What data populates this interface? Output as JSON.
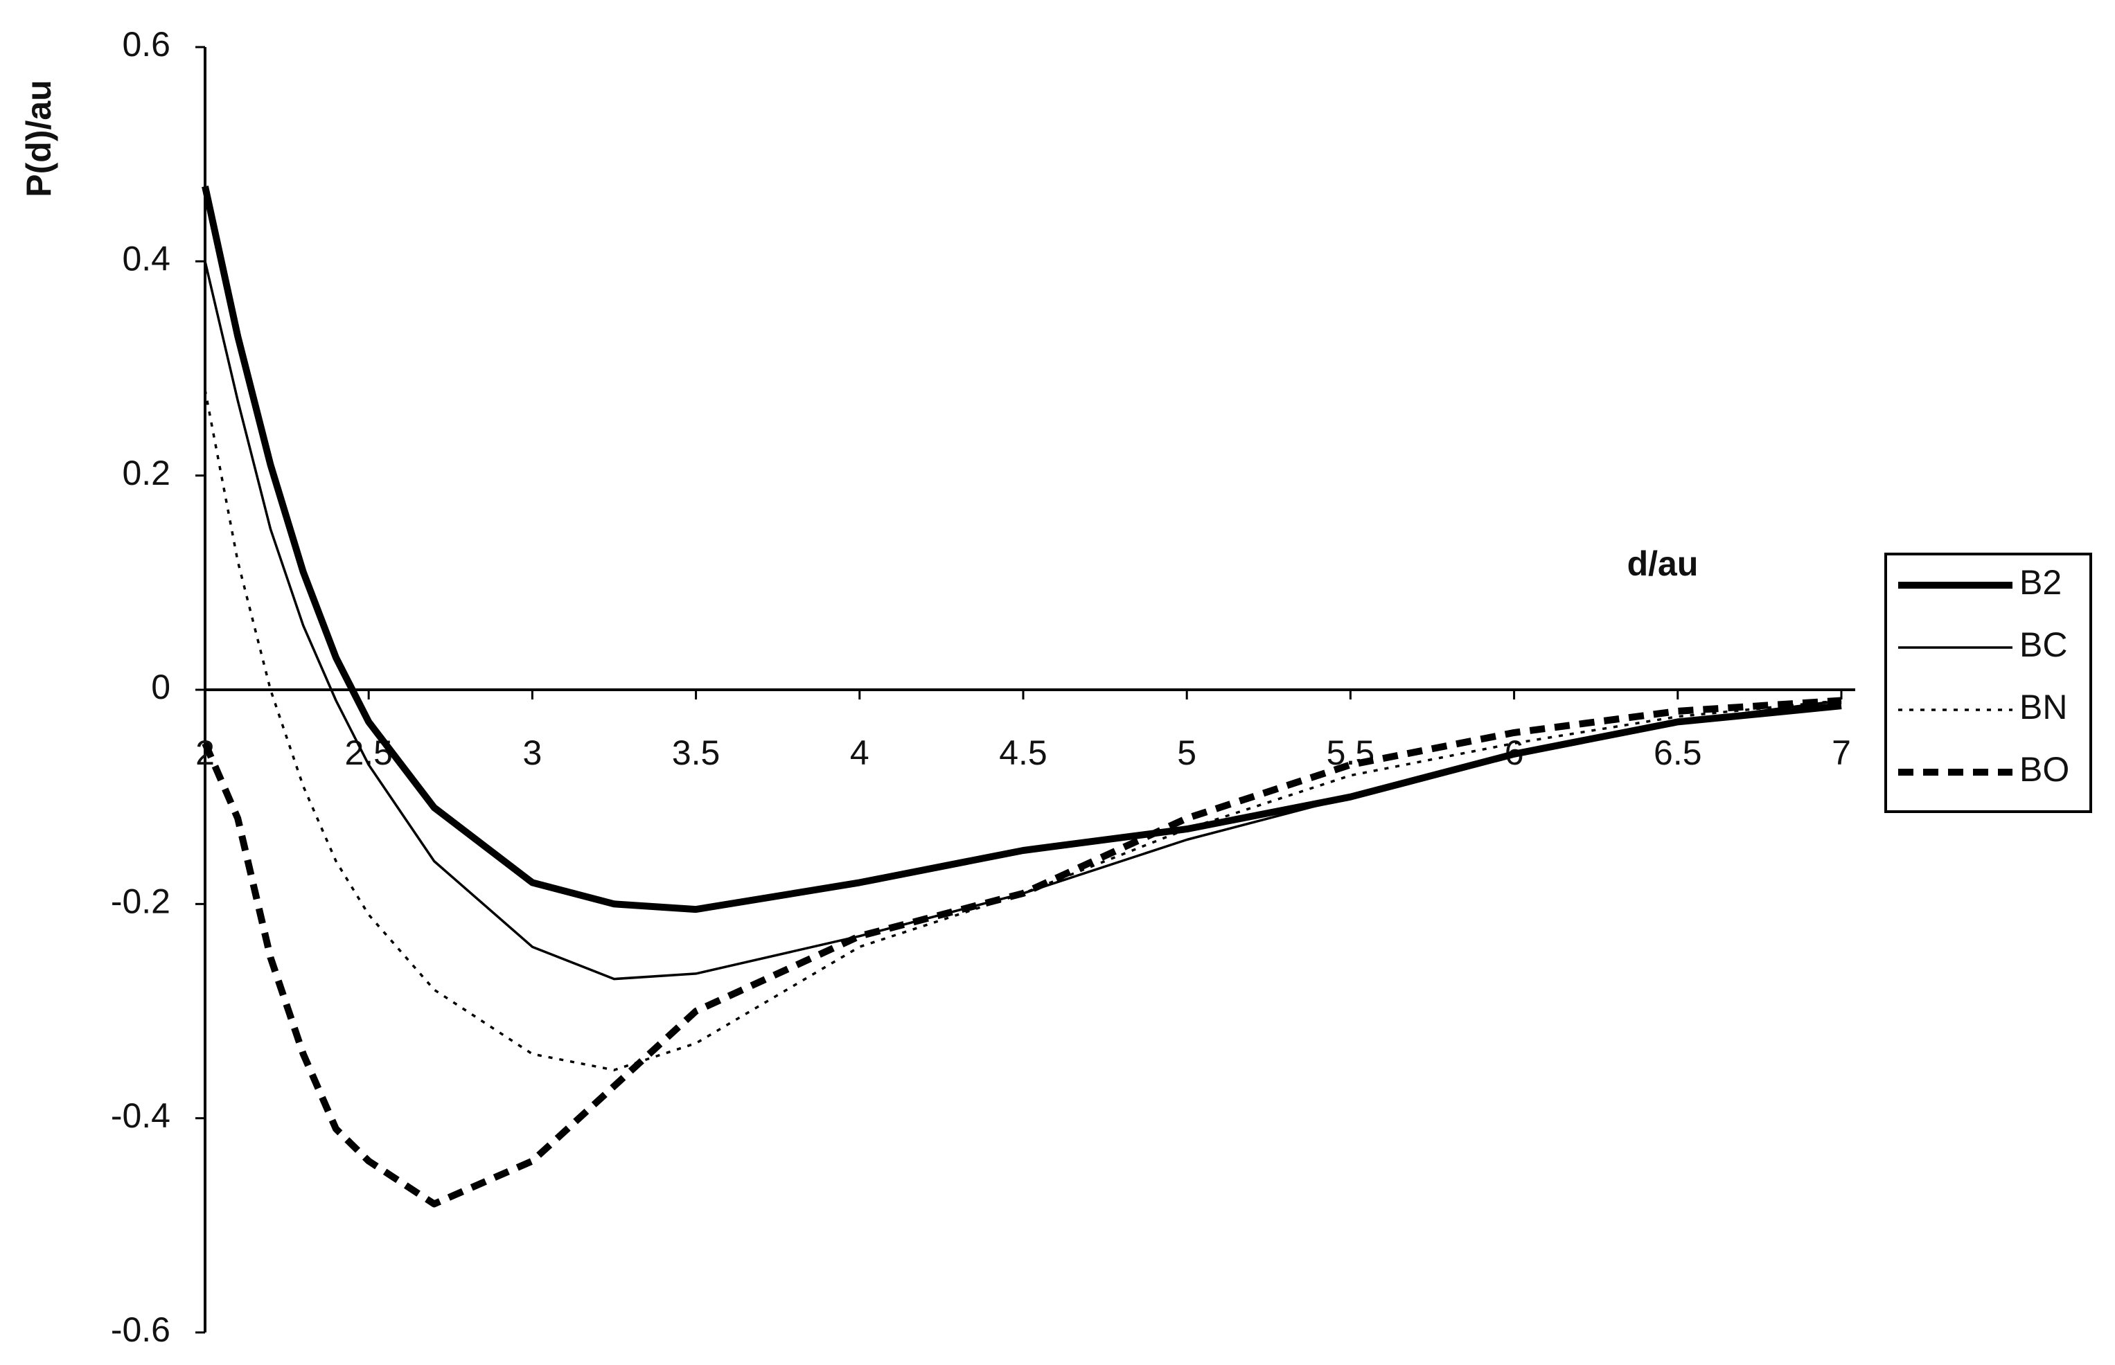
{
  "chart_data": {
    "type": "line",
    "y_label": "P(d)/au",
    "x_label": "d/au",
    "x": [
      2,
      2.1,
      2.2,
      2.3,
      2.4,
      2.5,
      2.7,
      3,
      3.25,
      3.5,
      4,
      4.5,
      5,
      5.5,
      6,
      6.5,
      7
    ],
    "series": [
      {
        "name": "B2",
        "color": "#000000",
        "values": [
          0.47,
          0.33,
          0.21,
          0.11,
          0.03,
          -0.03,
          -0.11,
          -0.18,
          -0.2,
          -0.205,
          -0.18,
          -0.15,
          -0.13,
          -0.1,
          -0.06,
          -0.03,
          -0.015
        ]
      },
      {
        "name": "BC",
        "color": "#000000",
        "values": [
          0.4,
          0.27,
          0.15,
          0.06,
          -0.01,
          -0.07,
          -0.16,
          -0.24,
          -0.27,
          -0.265,
          -0.23,
          -0.19,
          -0.14,
          -0.1,
          -0.06,
          -0.03,
          -0.01
        ]
      },
      {
        "name": "BN",
        "color": "#000000",
        "values": [
          0.28,
          0.12,
          0.0,
          -0.09,
          -0.16,
          -0.21,
          -0.28,
          -0.34,
          -0.355,
          -0.33,
          -0.24,
          -0.19,
          -0.13,
          -0.08,
          -0.05,
          -0.025,
          -0.01
        ]
      },
      {
        "name": "BO",
        "color": "#000000",
        "values": [
          -0.05,
          -0.12,
          -0.25,
          -0.34,
          -0.41,
          -0.44,
          -0.48,
          -0.44,
          -0.37,
          -0.3,
          -0.23,
          -0.19,
          -0.12,
          -0.07,
          -0.04,
          -0.02,
          -0.01
        ]
      }
    ],
    "xlim": [
      2,
      7
    ],
    "ylim": [
      -0.6,
      0.6
    ],
    "xticks": [
      2,
      2.5,
      3,
      3.5,
      4,
      4.5,
      5,
      5.5,
      6,
      6.5,
      7
    ],
    "yticks": [
      0.6,
      0.4,
      0.2,
      0,
      -0.2,
      -0.4,
      -0.6
    ],
    "grid": false
  }
}
